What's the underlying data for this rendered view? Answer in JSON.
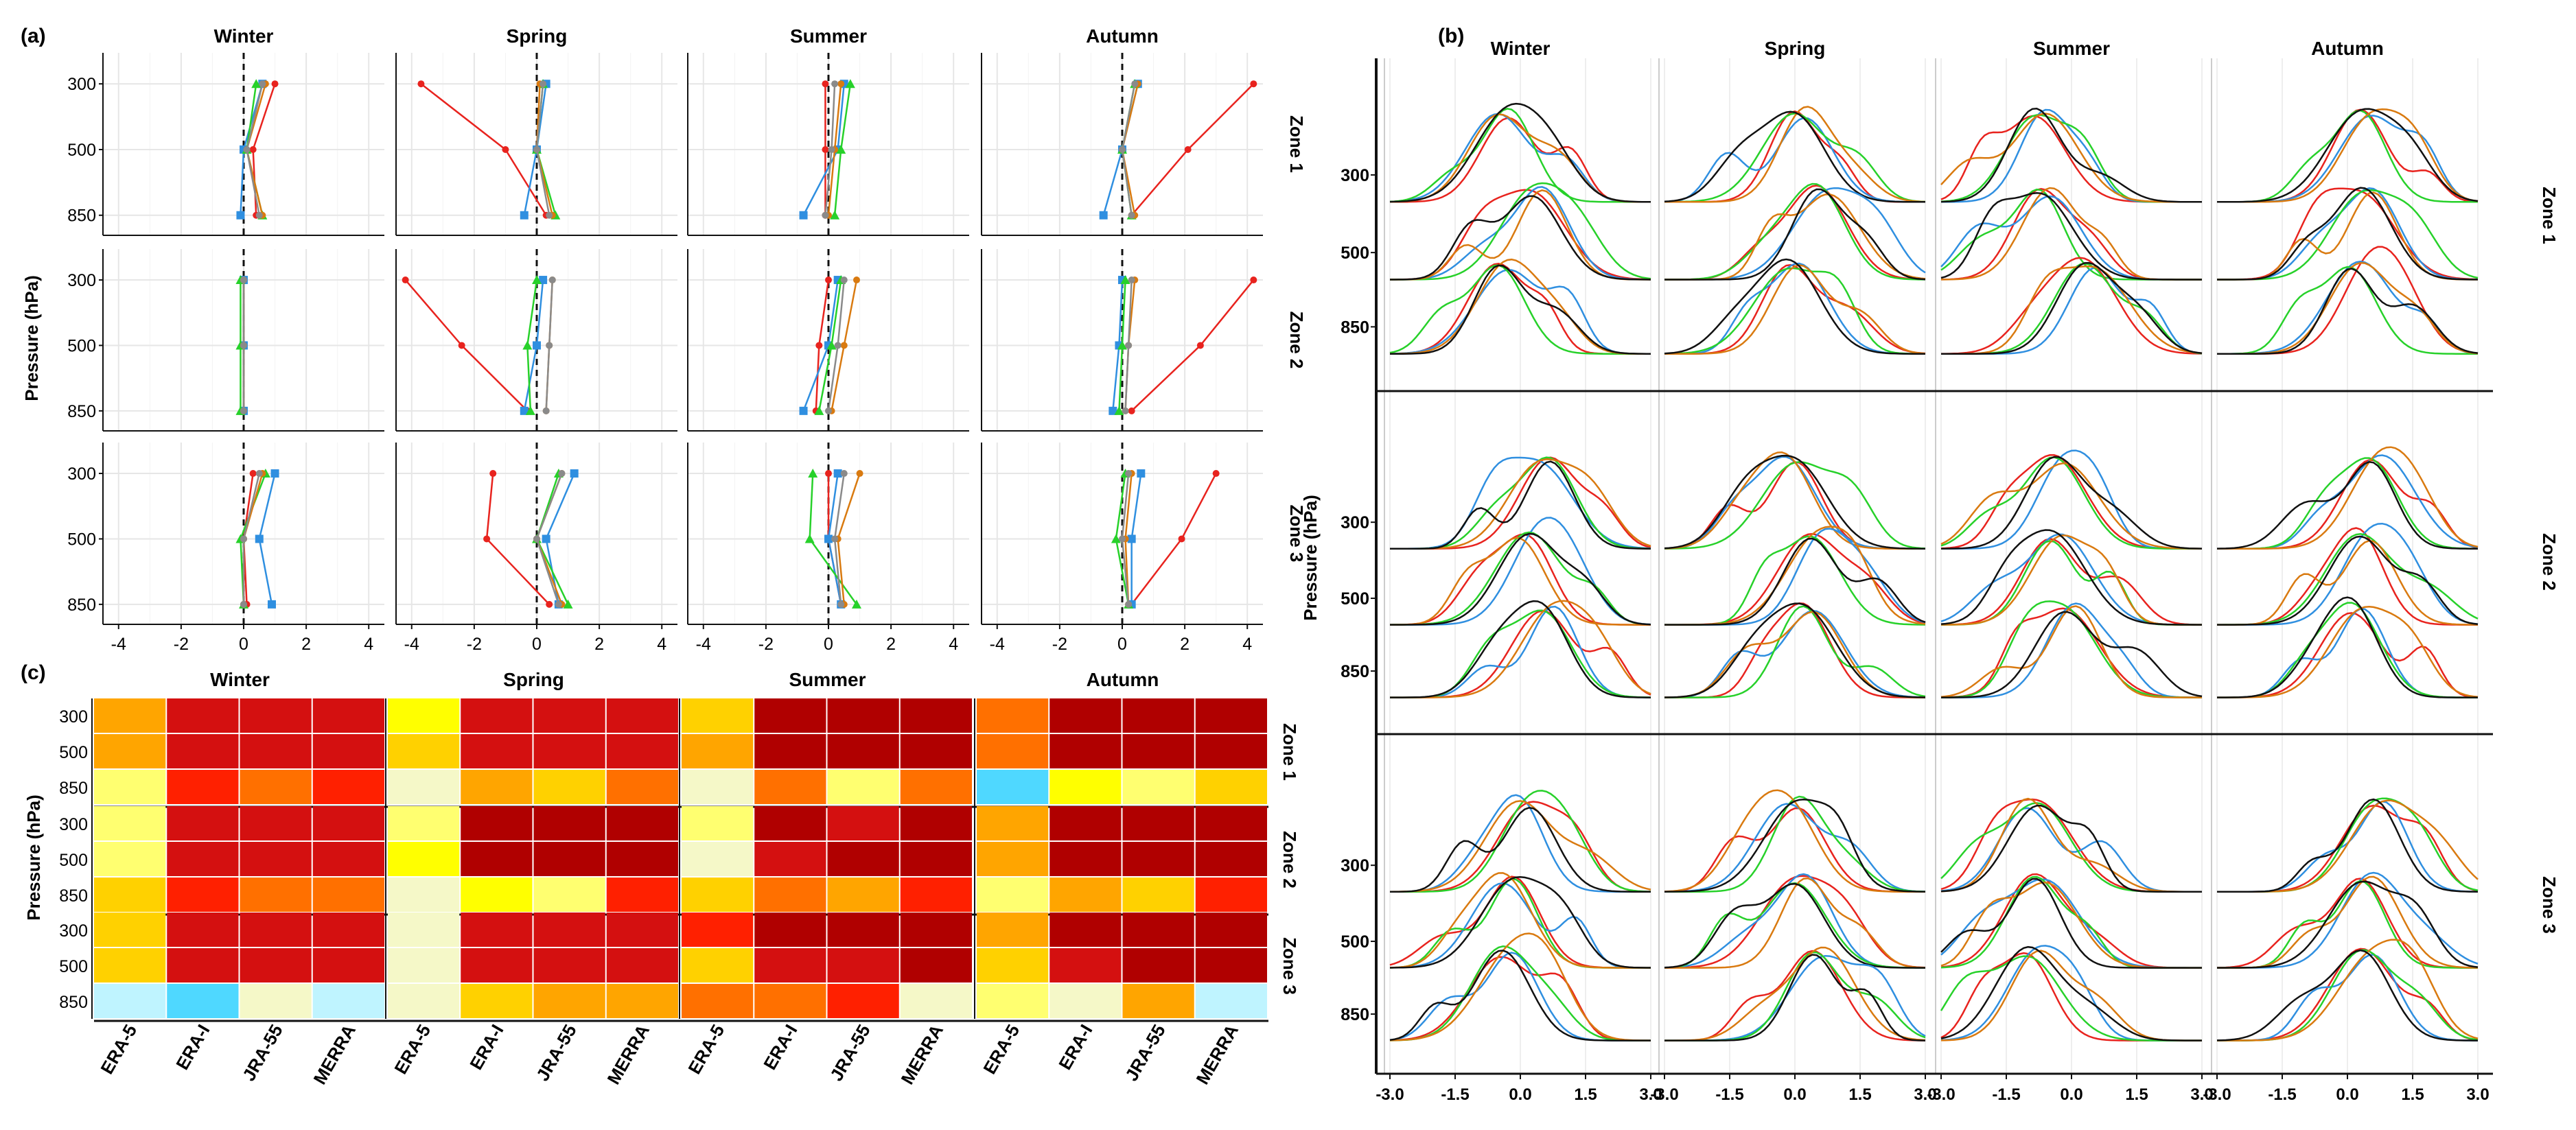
{
  "seasons": [
    "Winter",
    "Spring",
    "Summer",
    "Autumn"
  ],
  "zones": [
    "Zone 1",
    "Zone 2",
    "Zone 3"
  ],
  "pressure_levels": [
    "300",
    "500",
    "850"
  ],
  "datasets": [
    "ERA-5",
    "ERA-I",
    "JRA-55",
    "MERRA"
  ],
  "colors": {
    "red": "#e8231e",
    "blue": "#2f8fe0",
    "green": "#27d12a",
    "orange": "#d97a10",
    "gray": "#8a8a8a",
    "black": "#111111",
    "cyan": "#1ec4c4"
  },
  "chart_data": [
    {
      "panel": "(a)",
      "type": "line",
      "ylabel": "Pressure (hPa)",
      "xlim": [
        -4.5,
        4.5
      ],
      "x_ticks": [
        "-4",
        "-2",
        "0",
        "2",
        "4"
      ],
      "y_levels": [
        "300",
        "500",
        "850"
      ],
      "reference_line_x": 0,
      "series_colors": [
        "red",
        "blue",
        "green",
        "orange",
        "gray"
      ],
      "profiles": [
        [
          [
            [
              1.0,
              0.3,
              0.4
            ],
            [
              0.6,
              0.0,
              -0.1
            ],
            [
              0.4,
              0.1,
              0.6
            ],
            [
              0.7,
              0.1,
              0.6
            ],
            [
              0.6,
              0.1,
              0.5
            ]
          ],
          [
            [
              -3.7,
              -1.0,
              0.3
            ],
            [
              0.3,
              0.0,
              -0.4
            ],
            [
              0.2,
              0.0,
              0.6
            ],
            [
              0.1,
              0.0,
              0.5
            ],
            [
              0.2,
              0.0,
              0.4
            ]
          ],
          [
            [
              -0.1,
              -0.1,
              -0.1
            ],
            [
              0.5,
              0.3,
              -0.8
            ],
            [
              0.7,
              0.4,
              0.2
            ],
            [
              0.4,
              0.2,
              0.0
            ],
            [
              0.2,
              0.1,
              -0.1
            ]
          ],
          [
            [
              4.2,
              2.1,
              0.3
            ],
            [
              0.5,
              0.0,
              -0.6
            ],
            [
              0.4,
              0.0,
              0.3
            ],
            [
              0.5,
              0.0,
              0.4
            ],
            [
              0.4,
              0.0,
              0.3
            ]
          ]
        ],
        [
          [
            [
              0.0,
              0.0,
              0.0
            ],
            [
              0.0,
              0.0,
              0.0
            ],
            [
              -0.1,
              -0.1,
              -0.1
            ],
            [
              0.0,
              0.0,
              0.0
            ],
            [
              0.0,
              0.0,
              0.0
            ]
          ],
          [
            [
              -4.2,
              -2.4,
              -0.3
            ],
            [
              0.2,
              0.0,
              -0.4
            ],
            [
              0.0,
              -0.3,
              -0.2
            ],
            [
              0.5,
              0.4,
              0.3
            ],
            [
              0.5,
              0.4,
              0.3
            ]
          ],
          [
            [
              0.0,
              -0.3,
              -0.4
            ],
            [
              0.3,
              0.0,
              -0.8
            ],
            [
              0.4,
              0.1,
              -0.3
            ],
            [
              0.9,
              0.5,
              0.1
            ],
            [
              0.5,
              0.3,
              0.0
            ]
          ],
          [
            [
              4.2,
              2.5,
              0.3
            ],
            [
              0.0,
              -0.1,
              -0.3
            ],
            [
              0.1,
              0.0,
              -0.1
            ],
            [
              0.4,
              0.2,
              0.1
            ],
            [
              0.3,
              0.2,
              0.1
            ]
          ]
        ],
        [
          [
            [
              0.3,
              0.0,
              0.1
            ],
            [
              1.0,
              0.5,
              0.9
            ],
            [
              0.7,
              -0.1,
              0.0
            ],
            [
              0.6,
              0.0,
              0.0
            ],
            [
              0.5,
              0.0,
              0.0
            ]
          ],
          [
            [
              -1.4,
              -1.6,
              0.4
            ],
            [
              1.2,
              0.3,
              0.7
            ],
            [
              0.7,
              0.0,
              1.0
            ],
            [
              0.8,
              0.0,
              0.8
            ],
            [
              0.8,
              0.0,
              0.7
            ]
          ],
          [
            [
              0.0,
              0.0,
              0.4
            ],
            [
              0.3,
              0.0,
              0.4
            ],
            [
              -0.5,
              -0.6,
              0.9
            ],
            [
              1.0,
              0.3,
              0.5
            ],
            [
              0.5,
              0.2,
              0.4
            ]
          ],
          [
            [
              3.0,
              1.9,
              0.3
            ],
            [
              0.6,
              0.3,
              0.3
            ],
            [
              0.1,
              -0.2,
              0.2
            ],
            [
              0.3,
              0.1,
              0.2
            ],
            [
              0.2,
              0.0,
              0.2
            ]
          ]
        ]
      ]
    },
    {
      "panel": "(b)",
      "type": "line",
      "subtype": "density ridgelines",
      "ylabel": "Pressure (hPa)",
      "xlim": [
        -3.0,
        3.0
      ],
      "x_ticks": [
        "-3.0",
        "-1.5",
        "0.0",
        "1.5",
        "3.0"
      ],
      "y_levels": [
        "300",
        "500",
        "850"
      ],
      "series_colors": [
        "red",
        "blue",
        "green",
        "orange",
        "black"
      ],
      "peak_positions": [
        [
          [
            -0.3,
            0.3,
            -0.4
          ],
          [
            0.0,
            0.6,
            0.0
          ],
          [
            -0.8,
            -0.6,
            0.5
          ],
          [
            0.4,
            0.5,
            0.3
          ]
        ],
        [
          [
            0.6,
            0.2,
            0.6
          ],
          [
            0.0,
            0.4,
            0.3
          ],
          [
            -0.4,
            -0.4,
            0.0
          ],
          [
            0.6,
            0.4,
            0.3
          ]
        ],
        [
          [
            0.1,
            -0.2,
            -0.4
          ],
          [
            0.0,
            0.0,
            0.5
          ],
          [
            -0.8,
            -0.8,
            -0.9
          ],
          [
            0.6,
            0.4,
            0.5
          ]
        ]
      ]
    },
    {
      "panel": "(c)",
      "type": "heatmap",
      "ylabel": "Pressure (hPa)",
      "y_levels": [
        "300",
        "500",
        "850"
      ],
      "x_categories": [
        "ERA-5",
        "ERA-I",
        "JRA-55",
        "MERRA"
      ],
      "color_levels": {
        "0": "#4fd8ff",
        "1": "#bff4ff",
        "2": "#f5f8c8",
        "3": "#ffff70",
        "4": "#ffff00",
        "5": "#ffd100",
        "6": "#ffa500",
        "7": "#ff7000",
        "8": "#ff2000",
        "9": "#d41010",
        "10": "#b00000"
      },
      "values": [
        [
          [
            [
              6,
              9,
              9,
              9
            ],
            [
              6,
              9,
              9,
              9
            ],
            [
              3,
              8,
              7,
              8
            ]
          ],
          [
            [
              4,
              9,
              9,
              9
            ],
            [
              5,
              9,
              9,
              9
            ],
            [
              2,
              6,
              5,
              7
            ]
          ],
          [
            [
              5,
              10,
              10,
              10
            ],
            [
              6,
              10,
              10,
              10
            ],
            [
              2,
              7,
              3,
              7
            ]
          ],
          [
            [
              7,
              10,
              10,
              10
            ],
            [
              7,
              10,
              10,
              10
            ],
            [
              0,
              4,
              3,
              5
            ]
          ]
        ],
        [
          [
            [
              3,
              9,
              9,
              9
            ],
            [
              3,
              9,
              9,
              9
            ],
            [
              5,
              8,
              7,
              7
            ]
          ],
          [
            [
              3,
              10,
              10,
              10
            ],
            [
              4,
              10,
              10,
              10
            ],
            [
              2,
              4,
              3,
              8
            ]
          ],
          [
            [
              3,
              10,
              9,
              10
            ],
            [
              2,
              9,
              10,
              10
            ],
            [
              5,
              7,
              6,
              8
            ]
          ],
          [
            [
              6,
              10,
              10,
              10
            ],
            [
              6,
              10,
              10,
              10
            ],
            [
              3,
              6,
              5,
              8
            ]
          ]
        ],
        [
          [
            [
              5,
              9,
              9,
              9
            ],
            [
              5,
              9,
              9,
              9
            ],
            [
              1,
              0,
              2,
              1
            ]
          ],
          [
            [
              2,
              9,
              9,
              9
            ],
            [
              2,
              9,
              9,
              9
            ],
            [
              2,
              5,
              6,
              6
            ]
          ],
          [
            [
              8,
              10,
              10,
              10
            ],
            [
              5,
              9,
              9,
              10
            ],
            [
              7,
              7,
              8,
              2
            ]
          ],
          [
            [
              6,
              10,
              10,
              10
            ],
            [
              5,
              9,
              10,
              10
            ],
            [
              3,
              2,
              6,
              1
            ]
          ]
        ]
      ]
    }
  ]
}
